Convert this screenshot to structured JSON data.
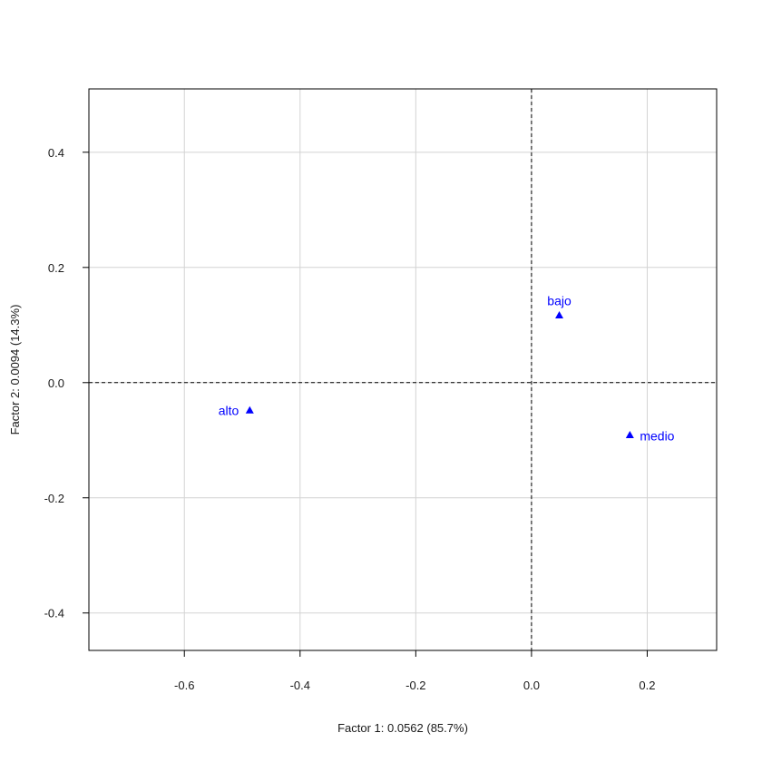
{
  "chart_data": {
    "type": "scatter",
    "title": "",
    "xlabel": "Factor 1: 0.0562 (85.7%)",
    "ylabel": "Factor 2: 0.0094 (14.3%)",
    "xlim": [
      -0.765,
      0.32
    ],
    "ylim": [
      -0.465,
      0.51
    ],
    "x_ticks": [
      -0.6,
      -0.4,
      -0.2,
      0.0,
      0.2
    ],
    "x_tick_labels": [
      "-0.6",
      "-0.4",
      "-0.2",
      "0.0",
      "0.2"
    ],
    "y_ticks": [
      -0.4,
      -0.2,
      0.0,
      0.2,
      0.4
    ],
    "y_tick_labels": [
      "-0.4",
      "-0.2",
      "0.0",
      "0.2",
      "0.4"
    ],
    "grid": true,
    "reference_lines": {
      "x": 0,
      "y": 0,
      "style": "dashed"
    },
    "marker": "filled-triangle",
    "point_color": "#0000ff",
    "grid_color": "#d3d3d3",
    "points": [
      {
        "label": "alto",
        "x": -0.487,
        "y": -0.048,
        "label_position": "left"
      },
      {
        "label": "bajo",
        "x": 0.048,
        "y": 0.117,
        "label_position": "above"
      },
      {
        "label": "medio",
        "x": 0.17,
        "y": -0.091,
        "label_position": "right"
      }
    ]
  }
}
